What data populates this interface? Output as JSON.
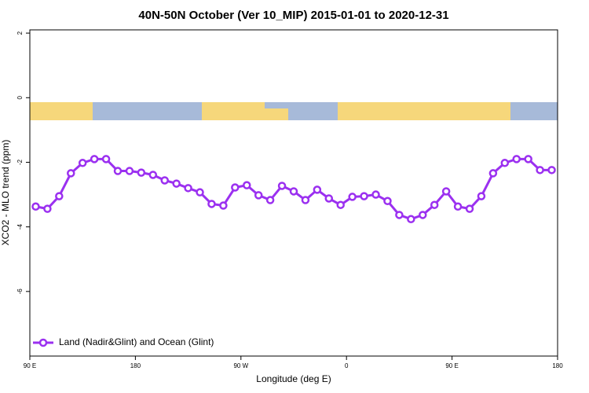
{
  "chart_data": {
    "type": "line",
    "title": "40N-50N October (Ver 10_MIP)   2015-01-01 to 2020-12-31",
    "x_label": "Longitude (deg E)",
    "y_label": "XCO2 - MLO trend (ppm)",
    "xlim": [
      90,
      540
    ],
    "ylim": [
      -8,
      2.1
    ],
    "xticks": [
      {
        "value": 90,
        "label": "90 E"
      },
      180,
      {
        "value": 270,
        "label": "90 W"
      },
      {
        "value": 360,
        "label": "0"
      },
      {
        "value": 450,
        "label": "90 E"
      },
      {
        "value": 540,
        "label": "180"
      }
    ],
    "yticks": [
      -6,
      -4,
      -2,
      0,
      2
    ],
    "legend": "bottom-left",
    "x": [
      95,
      105,
      115,
      125,
      135,
      145,
      155,
      165,
      175,
      185,
      195,
      205,
      215,
      225,
      235,
      245,
      255,
      265,
      275,
      285,
      295,
      305,
      315,
      325,
      335,
      345,
      355,
      365,
      375,
      385,
      395,
      405,
      415,
      425,
      435,
      445,
      455,
      465,
      475,
      485,
      495,
      505,
      515,
      525,
      535
    ],
    "series": [
      {
        "name": "Land (Nadir&Glint) and Ocean (Glint)",
        "color": "#9b30f0",
        "values": [
          -3.37,
          -3.44,
          -3.05,
          -2.34,
          -2.02,
          -1.9,
          -1.9,
          -2.27,
          -2.27,
          -2.32,
          -2.39,
          -2.56,
          -2.66,
          -2.8,
          -2.93,
          -3.29,
          -3.34,
          -2.78,
          -2.71,
          -3.02,
          -3.17,
          -2.73,
          -2.9,
          -3.17,
          -2.85,
          -3.12,
          -3.32,
          -3.07,
          -3.05,
          -3.0,
          -3.2,
          -3.63,
          -3.76,
          -3.63,
          -3.32,
          -2.9,
          -3.37,
          -3.44,
          -3.05,
          -2.34,
          -2.02,
          -1.9,
          -1.9,
          -2.24,
          -2.24
        ]
      }
    ]
  }
}
